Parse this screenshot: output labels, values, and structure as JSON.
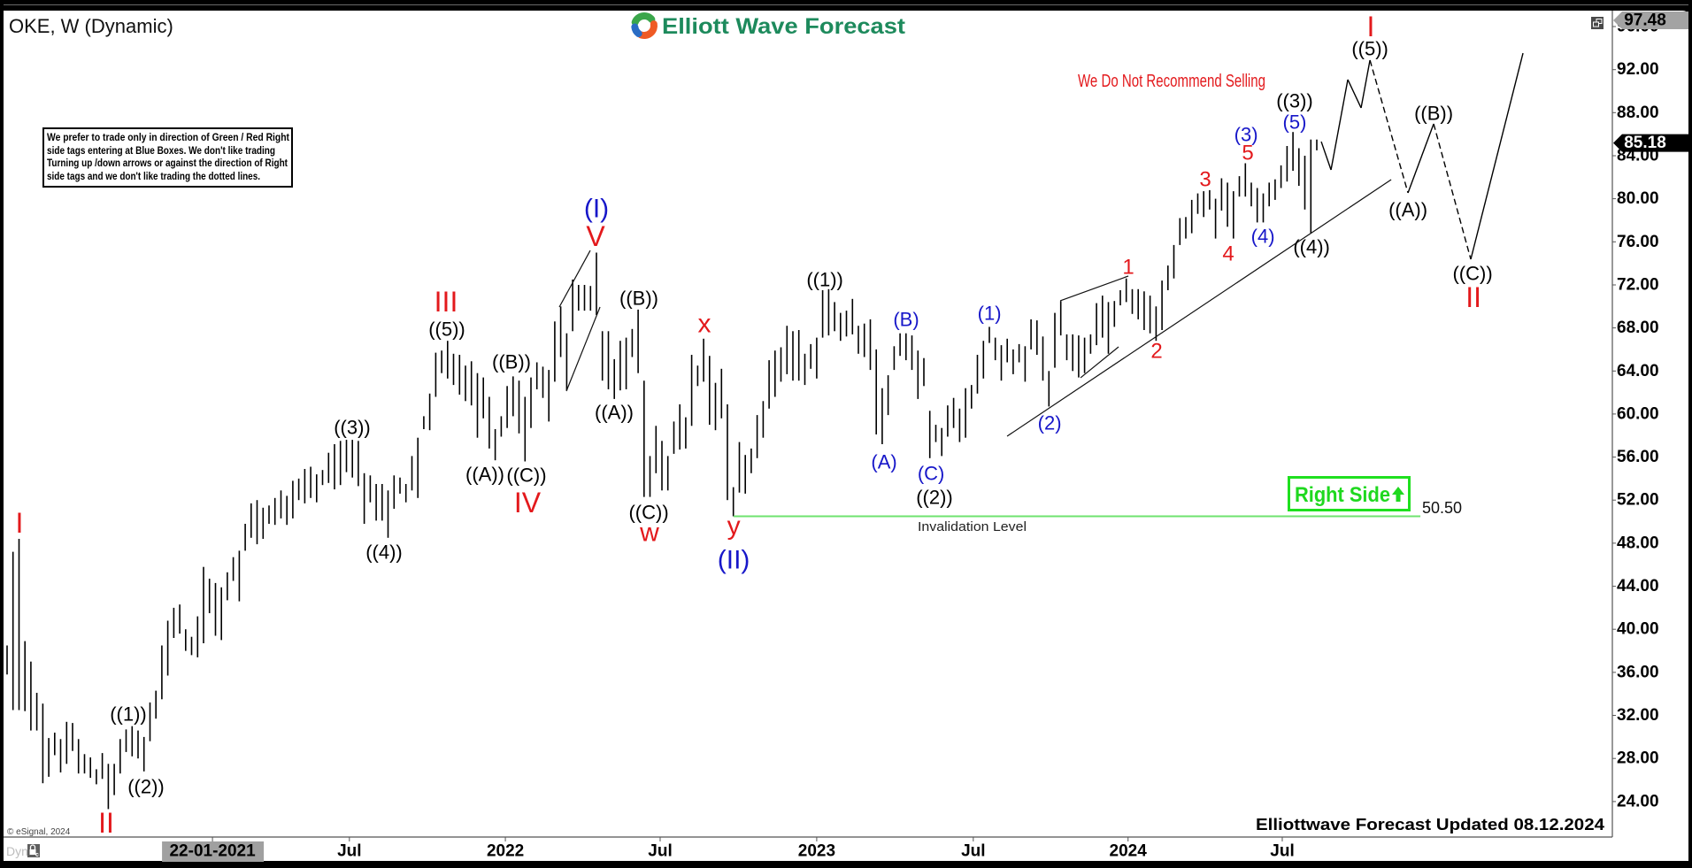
{
  "window": {
    "title": "OKE, W (Dynamic)"
  },
  "logo": {
    "text": "Elliott Wave Forecast",
    "icon": "elliott-wave-forecast-logo-icon"
  },
  "disclaimer": {
    "lines": [
      "We prefer to trade only in direction of Green / Red Right",
      "side tags entering at Blue Boxes. We don't like trading",
      "Turning up /down arrows or against the direction of Right",
      "side tags and we don't like trading the dotted lines."
    ]
  },
  "notice": {
    "text": "We Do Not Recommend Selling"
  },
  "right_side_tag": {
    "label": "Right Side",
    "icon": "arrow-up-icon"
  },
  "price_axis": {
    "high_label": "97.48",
    "last_label": "85.18"
  },
  "footer": {
    "updated": "Elliottwave Forecast Updated 08.12.2024",
    "copyright": "© eSignal, 2024",
    "dyn": "Dyn"
  },
  "icons": {
    "restore": "restore-window-icon",
    "lock": "lock-icon"
  },
  "chart_data": {
    "type": "bar",
    "title": "OKE, W (Dynamic)",
    "xlabel": "",
    "ylabel": "",
    "ylim": [
      20.7,
      97.48
    ],
    "grid": false,
    "legend": "none",
    "last_price": 85.18,
    "high_marker": 97.48,
    "colors": {
      "black": "#000000",
      "blue": "#1717c9",
      "red": "#e3191c"
    },
    "y_ticks": [
      "96.00",
      "92.00",
      "88.00",
      "84.00",
      "80.00",
      "76.00",
      "72.00",
      "68.00",
      "64.00",
      "60.00",
      "56.00",
      "52.00",
      "48.00",
      "44.00",
      "40.00",
      "36.00",
      "32.00",
      "28.00",
      "24.00"
    ],
    "x_ticks": [
      {
        "label": "22-01-2021",
        "index": 34.5,
        "highlight": true
      },
      {
        "label": "Jul",
        "index": 57.5
      },
      {
        "label": "2022",
        "index": 83.7
      },
      {
        "label": "Jul",
        "index": 109.7
      },
      {
        "label": "2023",
        "index": 136.0
      },
      {
        "label": "Jul",
        "index": 162.3
      },
      {
        "label": "2024",
        "index": 188.3
      },
      {
        "label": "Jul",
        "index": 214.2
      }
    ],
    "bars": {
      "interval": "weekly",
      "high": [
        38.5,
        47.2,
        48.4,
        38.9,
        37.0,
        34.1,
        33.1,
        29.9,
        30.4,
        29.8,
        31.4,
        31.3,
        29.8,
        28.4,
        28.1,
        27.0,
        28.5,
        27.5,
        27.5,
        29.8,
        30.7,
        31.0,
        30.6,
        30.0,
        33.2,
        34.3,
        38.5,
        40.8,
        42.0,
        42.3,
        40.0,
        39.3,
        41.2,
        45.8,
        44.7,
        44.3,
        43.9,
        45.3,
        46.7,
        47.3,
        49.8,
        51.7,
        52.0,
        51.3,
        51.5,
        52.2,
        52.9,
        52.4,
        53.8,
        54.0,
        54.9,
        55.1,
        54.4,
        54.8,
        56.4,
        57.2,
        57.5,
        57.6,
        57.6,
        57.5,
        54.5,
        54.3,
        53.5,
        53.5,
        52.9,
        54.3,
        54.1,
        53.5,
        56.1,
        57.8,
        59.8,
        61.9,
        65.7,
        65.9,
        66.8,
        65.6,
        65.5,
        64.5,
        64.9,
        63.8,
        63.4,
        61.6,
        58.6,
        59.8,
        62.6,
        63.5,
        63.1,
        61.6,
        63.4,
        64.8,
        64.4,
        64.1,
        68.6,
        70.0,
        67.5,
        72.5,
        72.0,
        72.0,
        71.9,
        75.0,
        67.7,
        67.7,
        65.1,
        66.8,
        67.1,
        67.9,
        69.7,
        63.1,
        56.1,
        58.9,
        57.5,
        56.1,
        59.3,
        60.9,
        59.7,
        65.5,
        64.5,
        67.0,
        65.4,
        62.9,
        64.2,
        60.9,
        53.2,
        57.4,
        56.2,
        56.8,
        59.9,
        61.2,
        65.0,
        65.9,
        66.2,
        68.2,
        67.7,
        67.8,
        65.6,
        66.5,
        67.1,
        71.5,
        71.6,
        70.4,
        69.4,
        69.6,
        70.7,
        68.2,
        68.4,
        68.8,
        66.0,
        62.4,
        63.6,
        66.3,
        67.5,
        67.5,
        67.3,
        65.9,
        65.2,
        60.3,
        59.0,
        58.7,
        60.8,
        61.5,
        60.5,
        62.4,
        62.7,
        65.5,
        66.8,
        68.1,
        67.1,
        66.4,
        67.0,
        66.0,
        66.5,
        66.3,
        68.8,
        68.7,
        67.2,
        64.0,
        69.4,
        70.5,
        67.4,
        67.4,
        67.3,
        67.1,
        67.4,
        70.3,
        71.0,
        70.4,
        70.5,
        71.5,
        72.6,
        71.6,
        71.6,
        71.4,
        71.0,
        70.0,
        72.4,
        73.8,
        75.7,
        78.2,
        78.3,
        79.9,
        80.5,
        80.7,
        80.8,
        80.0,
        81.9,
        81.5,
        80.7,
        82.1,
        83.3,
        81.5,
        81.0,
        80.5,
        81.5,
        81.8,
        83.1,
        84.9,
        86.2,
        84.7,
        84.0,
        85.5,
        85.5
      ],
      "low": [
        35.8,
        32.5,
        32.5,
        32.4,
        30.6,
        30.6,
        25.7,
        26.3,
        28.3,
        26.7,
        27.5,
        28.7,
        26.6,
        26.6,
        26.2,
        25.6,
        26.1,
        23.3,
        24.6,
        26.6,
        28.6,
        28.2,
        28.0,
        26.8,
        29.6,
        31.7,
        33.5,
        35.7,
        39.2,
        39.6,
        38.0,
        37.6,
        37.4,
        38.7,
        41.5,
        39.4,
        39.0,
        42.7,
        44.5,
        42.6,
        47.3,
        48.5,
        47.9,
        48.4,
        49.8,
        49.7,
        50.3,
        49.7,
        50.3,
        52.0,
        51.7,
        52.2,
        51.8,
        53.4,
        53.6,
        53.0,
        53.4,
        54.6,
        54.1,
        53.3,
        49.8,
        51.8,
        50.1,
        50.1,
        48.5,
        51.2,
        52.6,
        51.8,
        52.9,
        52.2,
        58.6,
        58.5,
        61.6,
        63.8,
        63.3,
        62.7,
        61.8,
        61.2,
        60.8,
        57.8,
        59.6,
        56.8,
        55.7,
        57.9,
        58.7,
        59.8,
        58.2,
        55.6,
        58.7,
        62.3,
        61.5,
        59.3,
        63.0,
        65.3,
        62.2,
        67.7,
        69.6,
        69.6,
        69.6,
        69.2,
        63.1,
        62.3,
        61.4,
        62.2,
        62.3,
        65.3,
        63.8,
        52.3,
        52.3,
        54.5,
        52.9,
        52.9,
        56.3,
        56.7,
        56.8,
        58.9,
        62.6,
        63.0,
        59.0,
        58.5,
        59.6,
        52.0,
        50.5,
        52.7,
        52.6,
        54.5,
        55.9,
        57.8,
        60.5,
        61.6,
        63.0,
        63.7,
        63.1,
        63.1,
        62.7,
        64.2,
        63.3,
        67.1,
        67.3,
        67.7,
        66.8,
        67.2,
        67.4,
        65.6,
        65.3,
        64.1,
        58.1,
        57.2,
        59.9,
        64.1,
        65.4,
        65.0,
        64.1,
        61.4,
        62.6,
        55.9,
        57.4,
        56.1,
        57.9,
        58.7,
        57.4,
        57.8,
        60.5,
        61.9,
        63.3,
        66.6,
        65.0,
        63.1,
        64.8,
        63.7,
        64.8,
        63.0,
        66.0,
        65.5,
        63.1,
        60.7,
        64.3,
        67.3,
        65.0,
        64.0,
        63.4,
        63.8,
        65.6,
        66.4,
        67.1,
        65.6,
        68.1,
        70.1,
        70.4,
        69.3,
        68.8,
        67.8,
        67.5,
        66.8,
        67.8,
        71.5,
        72.6,
        75.7,
        76.3,
        76.8,
        78.6,
        78.3,
        79.0,
        76.3,
        78.9,
        77.4,
        76.3,
        80.2,
        80.2,
        79.3,
        77.8,
        77.8,
        79.3,
        79.9,
        81.0,
        81.6,
        82.6,
        81.2,
        79.0,
        76.8,
        84.5
      ]
    },
    "annotations": [
      {
        "text": "I",
        "style": "red-roman",
        "index": 2.08,
        "price": 49.88
      },
      {
        "text": "II",
        "style": "red-roman",
        "index": 16.65,
        "price": 22.02
      },
      {
        "text": "((1))",
        "style": "black",
        "index": 20.37,
        "price": 32.13
      },
      {
        "text": "((2))",
        "style": "black",
        "index": 23.34,
        "price": 25.39
      },
      {
        "text": "((3))",
        "style": "black",
        "index": 57.97,
        "price": 58.76
      },
      {
        "text": "((4))",
        "style": "black",
        "index": 63.33,
        "price": 47.17
      },
      {
        "text": "III",
        "style": "red-roman",
        "index": 73.73,
        "price": 70.44
      },
      {
        "text": "((5))",
        "style": "black",
        "index": 73.88,
        "price": 67.89
      },
      {
        "text": "((A))",
        "style": "black",
        "index": 80.27,
        "price": 54.41
      },
      {
        "text": "((B))",
        "style": "black",
        "index": 84.73,
        "price": 64.85
      },
      {
        "text": "((C))",
        "style": "black",
        "index": 87.26,
        "price": 54.32
      },
      {
        "text": "IV",
        "style": "red-roman",
        "index": 87.41,
        "price": 51.77
      },
      {
        "text": "(I)",
        "style": "blue-degree",
        "index": 99.0,
        "price": 79.07
      },
      {
        "text": "V",
        "style": "red-roman",
        "index": 98.85,
        "price": 76.52
      },
      {
        "text": "((A))",
        "style": "black",
        "index": 101.98,
        "price": 60.16
      },
      {
        "text": "((B))",
        "style": "black",
        "index": 106.14,
        "price": 70.76
      },
      {
        "text": "((C))",
        "style": "black",
        "index": 107.78,
        "price": 50.87
      },
      {
        "text": "w",
        "style": "red-lower",
        "index": 107.92,
        "price": 48.98
      },
      {
        "text": "x",
        "style": "red-lower",
        "index": 117.14,
        "price": 68.38
      },
      {
        "text": "y",
        "style": "red-lower",
        "index": 122.05,
        "price": 49.6
      },
      {
        "text": "(II)",
        "style": "blue-degree",
        "index": 122.05,
        "price": 46.43
      },
      {
        "text": "((1))",
        "style": "black",
        "index": 137.36,
        "price": 72.49
      },
      {
        "text": "(A)",
        "style": "blue",
        "index": 147.32,
        "price": 55.56
      },
      {
        "text": "(B)",
        "style": "blue",
        "index": 151.03,
        "price": 68.79
      },
      {
        "text": "(C)",
        "style": "blue",
        "index": 155.2,
        "price": 54.49
      },
      {
        "text": "((2))",
        "style": "black",
        "index": 155.79,
        "price": 52.27
      },
      {
        "text": "(1)",
        "style": "blue",
        "index": 165.01,
        "price": 69.37
      },
      {
        "text": "(2)",
        "style": "blue",
        "index": 175.12,
        "price": 59.17
      },
      {
        "text": "1",
        "style": "red",
        "index": 188.35,
        "price": 73.64
      },
      {
        "text": "2",
        "style": "red",
        "index": 193.1,
        "price": 65.83
      },
      {
        "text": "3",
        "style": "red",
        "index": 201.28,
        "price": 81.78
      },
      {
        "text": "4",
        "style": "red",
        "index": 205.14,
        "price": 74.87
      },
      {
        "text": "(3)",
        "style": "blue",
        "index": 208.12,
        "price": 85.97
      },
      {
        "text": "5",
        "style": "red",
        "index": 208.41,
        "price": 84.25
      },
      {
        "text": "(4)",
        "style": "blue",
        "index": 210.94,
        "price": 76.52
      },
      {
        "text": "((3))",
        "style": "black",
        "index": 216.29,
        "price": 89.1
      },
      {
        "text": "(5)",
        "style": "blue",
        "index": 216.29,
        "price": 87.12
      },
      {
        "text": "((4))",
        "style": "black",
        "index": 219.12,
        "price": 75.53
      },
      {
        "text": "I",
        "style": "red-roman",
        "index": 229.07,
        "price": 96.0
      },
      {
        "text": "((5))",
        "style": "black",
        "index": 228.93,
        "price": 93.95
      },
      {
        "text": "((A))",
        "style": "black",
        "index": 235.32,
        "price": 78.98
      },
      {
        "text": "((B))",
        "style": "black",
        "index": 239.63,
        "price": 87.94
      },
      {
        "text": "((C))",
        "style": "black",
        "index": 246.17,
        "price": 73.07
      },
      {
        "text": "II",
        "style": "red-roman",
        "index": 246.32,
        "price": 70.85
      }
    ],
    "lines": [
      {
        "name": "ending-diagonal-upper-line",
        "points": [
          [
            92.76,
            69.94
          ],
          [
            97.96,
            75.2
          ]
        ]
      },
      {
        "name": "ending-diagonal-lower-line",
        "points": [
          [
            93.95,
            62.13
          ],
          [
            99.6,
            69.94
          ]
        ]
      },
      {
        "name": "leading-diagonal-upper-line",
        "points": [
          [
            176.9,
            70.52
          ],
          [
            188.35,
            72.82
          ]
        ]
      },
      {
        "name": "leading-diagonal-lower-line",
        "points": [
          [
            180.32,
            63.37
          ],
          [
            186.71,
            66.24
          ]
        ]
      },
      {
        "name": "support-trendline",
        "points": [
          [
            167.98,
            57.94
          ],
          [
            232.5,
            81.78
          ]
        ]
      }
    ],
    "projection": {
      "points": [
        [
          220.75,
          85.31
        ],
        [
          222.39,
          82.68
        ],
        [
          225.21,
          91.07
        ],
        [
          227.44,
          88.44
        ],
        [
          228.93,
          92.88
        ],
        [
          235.32,
          80.55
        ],
        [
          239.63,
          86.96
        ],
        [
          245.87,
          74.38
        ],
        [
          254.64,
          93.53
        ]
      ],
      "dashed_segments": [
        4,
        6
      ]
    },
    "levels": [
      {
        "label": "Invalidation Level",
        "value_label": "50.50",
        "price": 50.5,
        "from_index": 122.05,
        "to_index": 237.4,
        "color": "#6fe36f"
      }
    ]
  }
}
